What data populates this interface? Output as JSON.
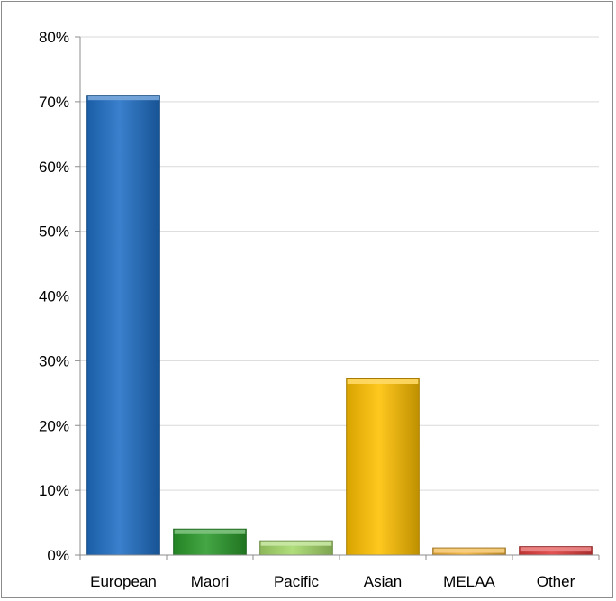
{
  "chart_data": {
    "type": "bar",
    "categories": [
      "European",
      "Maori",
      "Pacific",
      "Asian",
      "MELAA",
      "Other"
    ],
    "values": [
      71,
      4,
      2.2,
      27.2,
      1.1,
      1.3
    ],
    "title": "",
    "xlabel": "",
    "ylabel": "",
    "ylim": [
      0,
      80
    ],
    "yticks": [
      "0%",
      "10%",
      "20%",
      "30%",
      "40%",
      "50%",
      "60%",
      "70%",
      "80%"
    ],
    "grid": true,
    "legend": "none",
    "colors": [
      "#1f6fc5",
      "#2a9a2a",
      "#a6d96a",
      "#ffc000",
      "#f2b134",
      "#e03c3c"
    ]
  }
}
